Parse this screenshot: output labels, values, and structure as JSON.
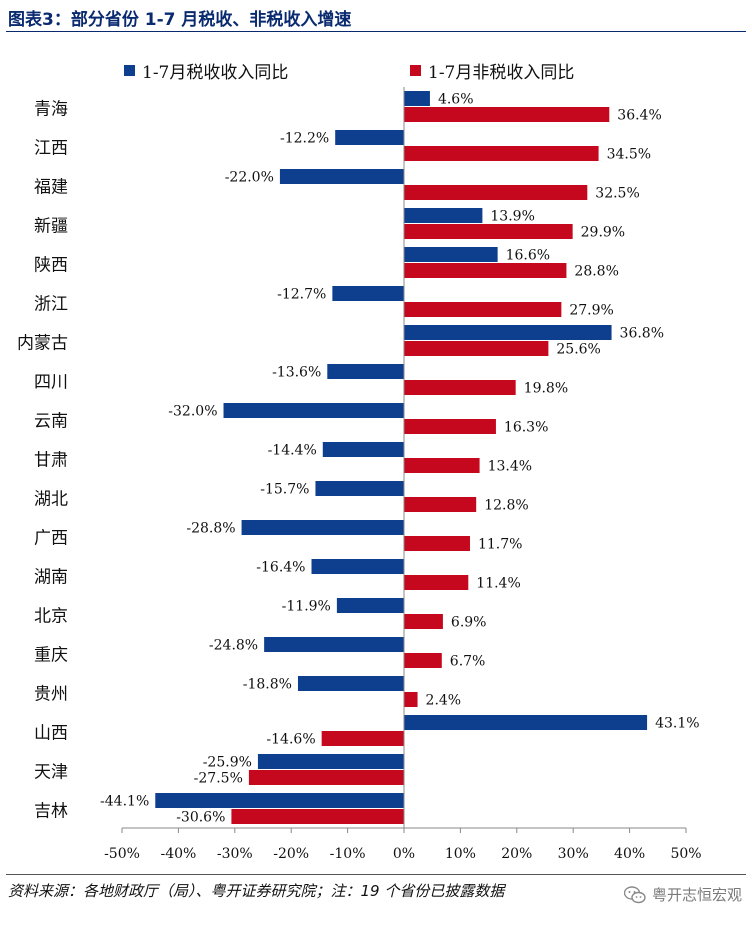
{
  "title": "图表3：部分省份 1-7 月税收、非税收入增速",
  "source": "资料来源：各地财政厅（局）、粤开证券研究院；注：19 个省份已披露数据",
  "watermark": "粤开志恒宏观",
  "colors": {
    "series1": "#0e3f8e",
    "series2": "#c5081d",
    "axis": "#888888",
    "text": "#111111"
  },
  "chart_data": {
    "type": "bar",
    "orientation": "horizontal",
    "categories": [
      "青海",
      "江西",
      "福建",
      "新疆",
      "陕西",
      "浙江",
      "内蒙古",
      "四川",
      "云南",
      "甘肃",
      "湖北",
      "广西",
      "湖南",
      "北京",
      "重庆",
      "贵州",
      "山西",
      "天津",
      "吉林"
    ],
    "series": [
      {
        "name": "1-7月税收收入同比",
        "values": [
          4.6,
          -12.2,
          -22.0,
          13.9,
          16.6,
          -12.7,
          36.8,
          -13.6,
          -32.0,
          -14.4,
          -15.7,
          -28.8,
          -16.4,
          -11.9,
          -24.8,
          -18.8,
          43.1,
          -25.9,
          -44.1
        ]
      },
      {
        "name": "1-7月非税收入同比",
        "values": [
          36.4,
          34.5,
          32.5,
          29.9,
          28.8,
          27.9,
          25.6,
          19.8,
          16.3,
          13.4,
          12.8,
          11.7,
          11.4,
          6.9,
          6.7,
          2.4,
          -14.6,
          -27.5,
          -30.6
        ]
      }
    ],
    "data_labels": [
      [
        "4.6%",
        "-12.2%",
        "-22.0%",
        "13.9%",
        "16.6%",
        "-12.7%",
        "36.8%",
        "-13.6%",
        "-32.0%",
        "-14.4%",
        "-15.7%",
        "-28.8%",
        "-16.4%",
        "-11.9%",
        "-24.8%",
        "-18.8%",
        "43.1%",
        "-25.9%",
        "-44.1%"
      ],
      [
        "36.4%",
        "34.5%",
        "32.5%",
        "29.9%",
        "28.8%",
        "27.9%",
        "25.6%",
        "19.8%",
        "16.3%",
        "13.4%",
        "12.8%",
        "11.7%",
        "11.4%",
        "6.9%",
        "6.7%",
        "2.4%",
        "-14.6%",
        "-27.5%",
        "-30.6%"
      ]
    ],
    "xlim": [
      -50,
      50
    ],
    "xticks": [
      -50,
      -40,
      -30,
      -20,
      -10,
      0,
      10,
      20,
      30,
      40,
      50
    ],
    "xtick_labels": [
      "-50%",
      "-40%",
      "-30%",
      "-20%",
      "-10%",
      "0%",
      "10%",
      "20%",
      "30%",
      "40%",
      "50%"
    ],
    "legend_position": "top",
    "grid": false
  }
}
